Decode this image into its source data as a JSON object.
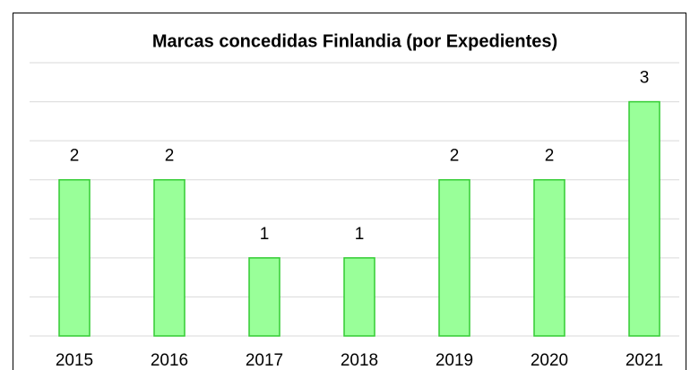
{
  "chart_data": {
    "type": "bar",
    "title": "Marcas concedidas Finlandia (por Expedientes)",
    "categories": [
      "2015",
      "2016",
      "2017",
      "2018",
      "2019",
      "2020",
      "2021"
    ],
    "values": [
      2,
      2,
      1,
      1,
      2,
      2,
      3
    ],
    "color": "#99ff99",
    "edge_color": "#33cc33",
    "ylim": [
      0,
      3.5
    ],
    "yticks": [
      0,
      0.5,
      1,
      1.5,
      2,
      2.5,
      3,
      3.5
    ],
    "grid": true,
    "y_tick_labels": false
  }
}
